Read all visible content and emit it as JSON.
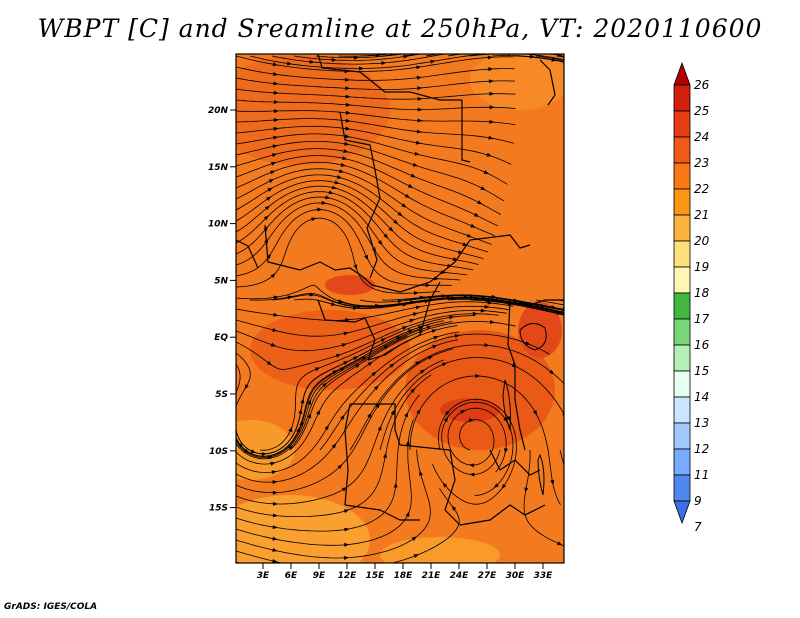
{
  "title": "WBPT [C] and Sreamline at 250hPa, VT: 2020110600",
  "credit": "GrADS: IGES/COLA",
  "map": {
    "lat_labels": [
      "20N",
      "15N",
      "10N",
      "5N",
      "EQ",
      "5S",
      "10S",
      "15S"
    ],
    "lon_labels": [
      "3E",
      "6E",
      "9E",
      "12E",
      "15E",
      "18E",
      "21E",
      "24E",
      "27E",
      "30E",
      "33E"
    ]
  },
  "colorbar": {
    "labels": [
      "26",
      "25",
      "24",
      "23",
      "22",
      "21",
      "20",
      "19",
      "18",
      "17",
      "16",
      "15",
      "14",
      "13",
      "12",
      "11",
      "9",
      "7"
    ],
    "colors": [
      "#b40000",
      "#d21e0a",
      "#e63c14",
      "#f05a14",
      "#fa7814",
      "#fa9614",
      "#fcb440",
      "#fee07a",
      "#fff5b4",
      "#40b840",
      "#78d878",
      "#b4f0b4",
      "#e6fff0",
      "#c8e6ff",
      "#a0c8ff",
      "#78aaff",
      "#5088f0",
      "#3c6ee6"
    ]
  }
}
